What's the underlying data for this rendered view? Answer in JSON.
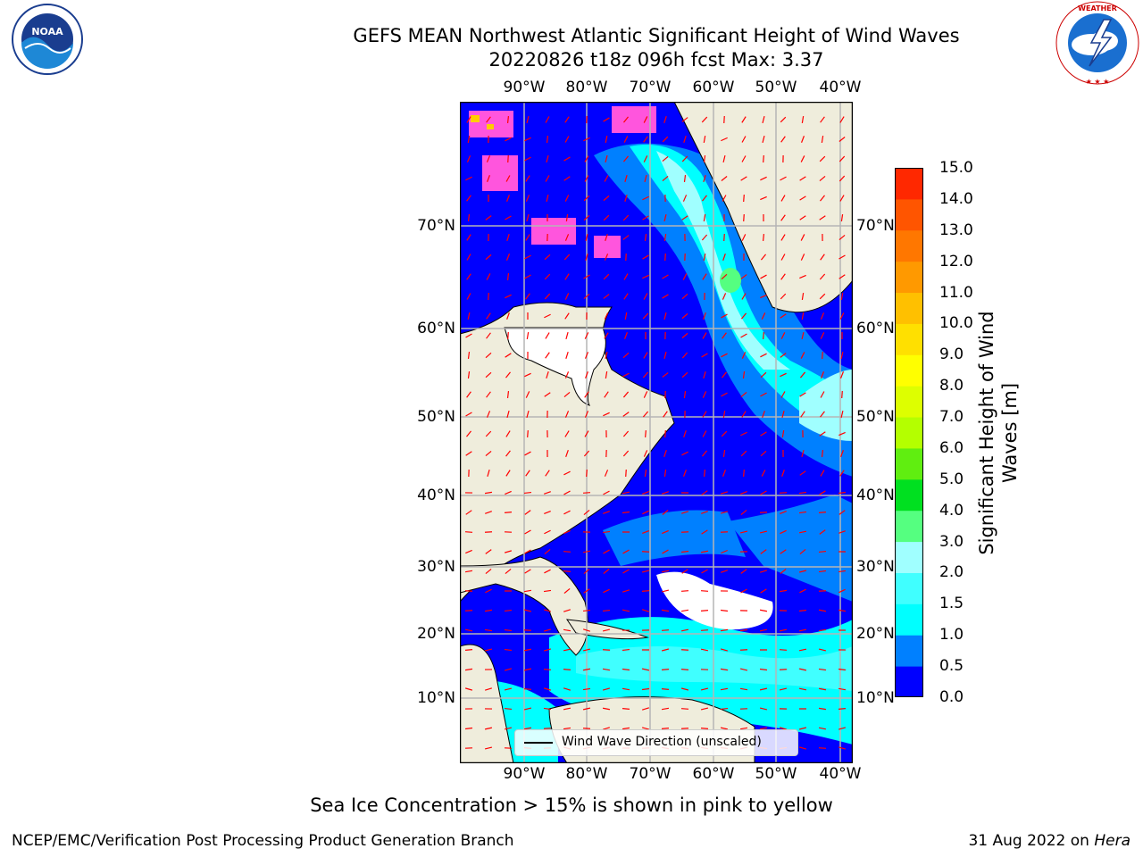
{
  "header": {
    "title_line1": "GEFS MEAN Northwest Atlantic Significant Height of Wind Waves",
    "title_line2": "20220826 t18z 096h fcst   Max: 3.37"
  },
  "logos": {
    "left": {
      "name": "noaa-logo",
      "text": "NOAA",
      "ring_text": "NATIONAL OCEANIC AND ATMOSPHERIC ADMINISTRATION · U.S. DEPARTMENT OF COMMERCE"
    },
    "right": {
      "name": "nws-logo",
      "ring_text": "NATIONAL WEATHER SERVICE"
    }
  },
  "map": {
    "lon_labels": [
      "90°W",
      "80°W",
      "70°W",
      "60°W",
      "50°W",
      "40°W"
    ],
    "lat_labels": [
      "70°N",
      "60°N",
      "50°N",
      "40°N",
      "30°N",
      "20°N",
      "10°N"
    ],
    "legend_label": "Wind Wave Direction (unscaled)",
    "colors": {
      "land": "#efeddc",
      "grid": "#b5b5b5",
      "coast": "#000000",
      "arrows": "#ff0000",
      "ice": "#ff55dd"
    }
  },
  "colorbar": {
    "label_line1": "Significant Height of Wind",
    "label_line2": "Waves [m]",
    "ticks": [
      "15.0",
      "14.0",
      "13.0",
      "12.0",
      "11.0",
      "10.0",
      "9.0",
      "8.0",
      "7.0",
      "6.0",
      "5.0",
      "4.0",
      "3.0",
      "2.0",
      "1.5",
      "1.0",
      "0.5",
      "0.0"
    ],
    "colors": [
      "#0000ff",
      "#0080ff",
      "#00ffff",
      "#40ffff",
      "#a0ffff",
      "#55ff80",
      "#00e020",
      "#60ee10",
      "#b4ff00",
      "#ddff00",
      "#ffff00",
      "#ffe000",
      "#ffc000",
      "#ff9900",
      "#ff7700",
      "#ff5500",
      "#ff2800"
    ]
  },
  "footer": {
    "subtitle": "Sea Ice Concentration > 15% is shown in pink to yellow",
    "credit": "NCEP/EMC/Verification Post Processing Product Generation Branch",
    "date": "31 Aug 2022 on ",
    "host": "Hera"
  }
}
